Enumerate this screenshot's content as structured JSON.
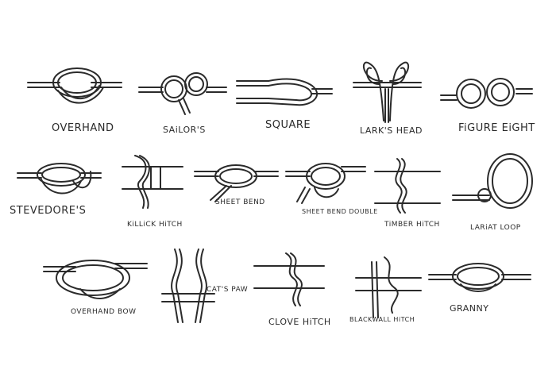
{
  "colors": {
    "ink": "#2b2b2b",
    "background": "#ffffff"
  },
  "knots": [
    {
      "id": "overhand",
      "label": "OVERHAND"
    },
    {
      "id": "sailors",
      "label": "SAiLOR'S"
    },
    {
      "id": "square",
      "label": "SQUARE"
    },
    {
      "id": "larks-head",
      "label": "LARK'S HEAD"
    },
    {
      "id": "figure-eight",
      "label": "FiGURE EiGHT"
    },
    {
      "id": "stevedores",
      "label": "STEVEDORE'S"
    },
    {
      "id": "killick-hitch",
      "label": "KiLLiCK HiTCH"
    },
    {
      "id": "sheet-bend",
      "label": "SHEET BEND"
    },
    {
      "id": "sheet-bend-double",
      "label": "SHEET BEND DOUBLE"
    },
    {
      "id": "timber-hitch",
      "label": "TiMBER HiTCH"
    },
    {
      "id": "lariat-loop",
      "label": "LARiAT LOOP"
    },
    {
      "id": "overhand-bow",
      "label": "OVERHAND BOW"
    },
    {
      "id": "cats-paw",
      "label": "CAT'S PAW"
    },
    {
      "id": "clove-hitch",
      "label": "CLOVE HiTCH"
    },
    {
      "id": "blackwall-hitch",
      "label": "BLACKWALL HiTCH"
    },
    {
      "id": "granny",
      "label": "GRANNY"
    }
  ]
}
